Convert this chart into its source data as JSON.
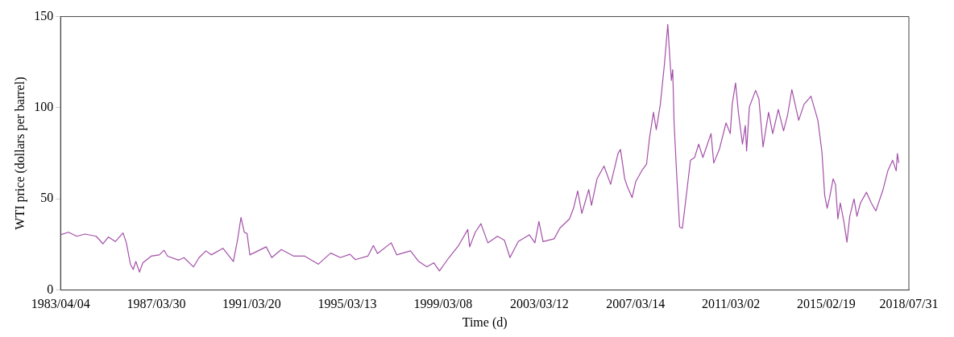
{
  "chart_data": {
    "type": "line",
    "xlabel": "Time (d)",
    "ylabel": "WTI price (dollars per barrel)",
    "xlim": [
      "1983-04-04",
      "2018-07-31"
    ],
    "xticks": [
      {
        "value": "1983-04-04",
        "label": "1983/04/04"
      },
      {
        "value": "1987-03-30",
        "label": "1987/03/30"
      },
      {
        "value": "1991-03-20",
        "label": "1991/03/20"
      },
      {
        "value": "1995-03-13",
        "label": "1995/03/13"
      },
      {
        "value": "1999-03-08",
        "label": "1999/03/08"
      },
      {
        "value": "2003-03-12",
        "label": "2003/03/12"
      },
      {
        "value": "2007-03-14",
        "label": "2007/03/14"
      },
      {
        "value": "2011-03-02",
        "label": "2011/03/02"
      },
      {
        "value": "2015-02-19",
        "label": "2015/02/19"
      },
      {
        "value": "2018-07-31",
        "label": "2018/07/31"
      }
    ],
    "ylim": [
      0,
      150
    ],
    "yticks": [
      0,
      50,
      100,
      150
    ],
    "grid": false,
    "legend": false,
    "marker": "none",
    "line_style": "solid",
    "series": [
      {
        "color": "#a350a8",
        "x": [
          "1983-04-04",
          "1983-08-02",
          "1983-12-07",
          "1984-04-10",
          "1984-09-25",
          "1985-01-07",
          "1985-04-01",
          "1985-07-14",
          "1985-11-09",
          "1985-12-29",
          "1986-03-01",
          "1986-04-13",
          "1986-05-23",
          "1986-07-17",
          "1986-09-06",
          "1987-01-11",
          "1987-05-14",
          "1987-07-27",
          "1987-09-17",
          "1988-03-02",
          "1988-05-23",
          "1988-10-16",
          "1989-01-09",
          "1989-04-22",
          "1989-07-13",
          "1990-01-06",
          "1990-06-14",
          "1990-08-15",
          "1990-10-08",
          "1990-11-27",
          "1991-01-08",
          "1991-02-20",
          "1991-10-26",
          "1992-01-19",
          "1992-06-12",
          "1992-12-19",
          "1993-06-03",
          "1993-12-28",
          "1994-07-03",
          "1994-11-28",
          "1995-04-21",
          "1995-07-14",
          "1996-01-19",
          "1996-04-12",
          "1996-06-14",
          "1997-01-09",
          "1997-04-02",
          "1997-10-29",
          "1998-03-02",
          "1998-07-05",
          "1998-10-19",
          "1999-01-12",
          "1999-06-06",
          "1999-10-30",
          "2000-03-18",
          "2000-04-16",
          "2000-07-10",
          "2000-10-04",
          "2001-01-17",
          "2001-06-13",
          "2001-09-27",
          "2001-12-20",
          "2002-04-25",
          "2002-10-10",
          "2003-01-03",
          "2003-03-05",
          "2003-05-07",
          "2003-10-23",
          "2004-01-17",
          "2004-06-11",
          "2004-08-13",
          "2004-10-15",
          "2004-12-17",
          "2005-04-01",
          "2005-05-13",
          "2005-08-05",
          "2005-11-19",
          "2006-02-28",
          "2006-06-21",
          "2006-07-28",
          "2006-09-30",
          "2006-11-10",
          "2007-01-21",
          "2007-03-17",
          "2007-06-27",
          "2007-08-28",
          "2007-10-10",
          "2007-12-11",
          "2008-01-23",
          "2008-03-25",
          "2008-05-26",
          "2008-07-16",
          "2008-08-17",
          "2008-09-09",
          "2008-09-29",
          "2008-10-20",
          "2008-11-30",
          "2009-01-12",
          "2009-02-23",
          "2009-04-25",
          "2009-06-26",
          "2009-08-28",
          "2009-10-29",
          "2010-01-01",
          "2010-05-05",
          "2010-06-15",
          "2010-09-08",
          "2010-12-19",
          "2011-02-21",
          "2011-03-23",
          "2011-05-13",
          "2011-06-25",
          "2011-08-26",
          "2011-10-08",
          "2011-10-28",
          "2011-12-09",
          "2012-03-13",
          "2012-05-02",
          "2012-07-04",
          "2012-09-26",
          "2012-11-28",
          "2013-02-21",
          "2013-05-12",
          "2013-07-13",
          "2013-09-15",
          "2013-12-28",
          "2014-03-20",
          "2014-07-03",
          "2014-10-16",
          "2014-12-17",
          "2015-01-27",
          "2015-03-06",
          "2015-04-12",
          "2015-06-05",
          "2015-07-10",
          "2015-08-16",
          "2015-09-22",
          "2015-11-15",
          "2016-01-01",
          "2016-02-13",
          "2016-04-18",
          "2016-06-01",
          "2016-07-25",
          "2016-10-24",
          "2017-01-04",
          "2017-03-16",
          "2017-07-03",
          "2017-09-14",
          "2017-11-26",
          "2018-01-19",
          "2018-02-06",
          "2018-02-28"
        ],
        "values": [
          30.3,
          31.7,
          29.5,
          30.7,
          29.5,
          25.4,
          29.1,
          26.6,
          31.3,
          25.9,
          14.2,
          11.3,
          15.7,
          9.8,
          14.9,
          18.6,
          19.3,
          21.8,
          18.6,
          16.4,
          17.8,
          12.7,
          17.8,
          21.5,
          19.3,
          22.9,
          15.7,
          27.3,
          39.8,
          31.7,
          31.0,
          19.3,
          23.7,
          17.8,
          22.2,
          18.6,
          18.6,
          14.2,
          20.3,
          17.8,
          19.6,
          16.7,
          18.6,
          24.4,
          20.0,
          25.9,
          19.3,
          21.5,
          15.7,
          12.7,
          14.9,
          10.5,
          17.8,
          24.4,
          33.2,
          23.7,
          31.7,
          36.4,
          25.9,
          29.5,
          27.3,
          17.8,
          26.6,
          30.3,
          25.9,
          37.6,
          26.6,
          28.1,
          33.9,
          39.0,
          44.9,
          54.4,
          42.0,
          55.1,
          46.4,
          61.0,
          68,
          58,
          75,
          77.1,
          61.0,
          56.6,
          50.7,
          59.5,
          66.1,
          69.0,
          82.9,
          97.5,
          88.0,
          101.9,
          123.8,
          145.7,
          126.8,
          115.0,
          120.9,
          91.7,
          62.4,
          34.6,
          33.9,
          52.2,
          71.2,
          72.7,
          80.0,
          72.7,
          85.8,
          69.7,
          77.1,
          91.7,
          85.8,
          101.9,
          113.6,
          97.5,
          80.0,
          90.2,
          76.3,
          100.4,
          109.5,
          104.8,
          78.5,
          97.5,
          85.8,
          99.0,
          87.3,
          96.1,
          110.0,
          93.1,
          101.9,
          106.3,
          93.1,
          75.6,
          52.2,
          44.9,
          50.7,
          61.0,
          58.0,
          39.0,
          47.8,
          37.6,
          26.2,
          40.5,
          50.0,
          40.5,
          47.8,
          53.6,
          47.8,
          43.4,
          55.1,
          65.4,
          71.2,
          65.4,
          74.9,
          69.7
        ]
      }
    ]
  }
}
